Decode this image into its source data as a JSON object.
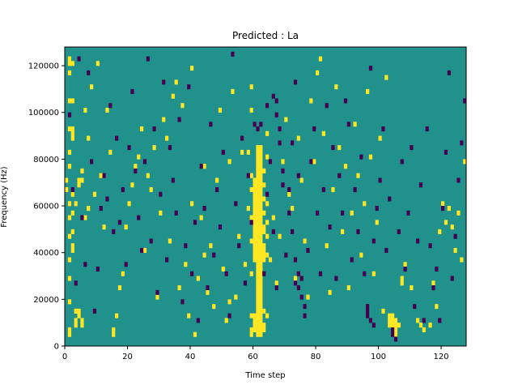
{
  "chart_data": {
    "type": "heatmap",
    "title": "Predicted : La",
    "xlabel": "Time step",
    "ylabel": "Frequency (Hz)",
    "xlim": [
      0,
      128
    ],
    "ylim": [
      0,
      128000
    ],
    "x_ticks": [
      0,
      20,
      40,
      60,
      80,
      100,
      120
    ],
    "y_ticks": [
      0,
      20000,
      40000,
      60000,
      80000,
      100000,
      120000
    ],
    "x_tick_labels": [
      "0",
      "20",
      "40",
      "60",
      "80",
      "100",
      "120"
    ],
    "y_tick_labels": [
      "0",
      "20000",
      "40000",
      "60000",
      "80000",
      "100000",
      "120000"
    ],
    "grid": false,
    "legend": "none",
    "rows": 64,
    "cols": 128,
    "bin_height_hz": 2000,
    "background_value": 0,
    "colors": {
      "low": "#440154",
      "mid": "#21918c",
      "high": "#fde725"
    },
    "cells_high": [
      [
        61,
        2
      ],
      [
        61,
        3
      ],
      [
        61,
        4
      ],
      [
        61,
        5
      ],
      [
        61,
        6
      ],
      [
        61,
        7
      ],
      [
        61,
        8
      ],
      [
        61,
        9
      ],
      [
        61,
        10
      ],
      [
        61,
        11
      ],
      [
        61,
        12
      ],
      [
        61,
        13
      ],
      [
        61,
        14
      ],
      [
        61,
        15
      ],
      [
        61,
        16
      ],
      [
        61,
        17
      ],
      [
        61,
        18
      ],
      [
        61,
        19
      ],
      [
        61,
        20
      ],
      [
        61,
        21
      ],
      [
        61,
        22
      ],
      [
        61,
        23
      ],
      [
        61,
        24
      ],
      [
        61,
        25
      ],
      [
        61,
        26
      ],
      [
        61,
        27
      ],
      [
        61,
        28
      ],
      [
        61,
        29
      ],
      [
        61,
        30
      ],
      [
        61,
        31
      ],
      [
        61,
        32
      ],
      [
        61,
        33
      ],
      [
        61,
        34
      ],
      [
        61,
        35
      ],
      [
        61,
        36
      ],
      [
        61,
        37
      ],
      [
        61,
        38
      ],
      [
        61,
        39
      ],
      [
        61,
        40
      ],
      [
        61,
        41
      ],
      [
        61,
        42
      ],
      [
        62,
        2
      ],
      [
        62,
        3
      ],
      [
        62,
        4
      ],
      [
        62,
        5
      ],
      [
        62,
        6
      ],
      [
        62,
        7
      ],
      [
        62,
        8
      ],
      [
        62,
        9
      ],
      [
        62,
        10
      ],
      [
        62,
        11
      ],
      [
        62,
        12
      ],
      [
        62,
        13
      ],
      [
        62,
        14
      ],
      [
        62,
        15
      ],
      [
        62,
        16
      ],
      [
        62,
        17
      ],
      [
        62,
        18
      ],
      [
        62,
        19
      ],
      [
        62,
        20
      ],
      [
        62,
        21
      ],
      [
        62,
        22
      ],
      [
        62,
        23
      ],
      [
        62,
        24
      ],
      [
        62,
        25
      ],
      [
        62,
        26
      ],
      [
        62,
        27
      ],
      [
        62,
        28
      ],
      [
        62,
        29
      ],
      [
        62,
        30
      ],
      [
        62,
        31
      ],
      [
        62,
        32
      ],
      [
        62,
        33
      ],
      [
        62,
        34
      ],
      [
        62,
        35
      ],
      [
        62,
        36
      ],
      [
        62,
        37
      ],
      [
        62,
        38
      ],
      [
        62,
        39
      ],
      [
        62,
        40
      ],
      [
        62,
        41
      ],
      [
        62,
        42
      ],
      [
        60,
        3
      ],
      [
        60,
        4
      ],
      [
        60,
        5
      ],
      [
        60,
        6
      ],
      [
        60,
        18
      ],
      [
        60,
        19
      ],
      [
        60,
        20
      ],
      [
        60,
        21
      ],
      [
        60,
        22
      ],
      [
        60,
        23
      ],
      [
        60,
        24
      ],
      [
        60,
        25
      ],
      [
        60,
        26
      ],
      [
        60,
        27
      ],
      [
        60,
        28
      ],
      [
        60,
        29
      ],
      [
        60,
        30
      ],
      [
        60,
        31
      ],
      [
        60,
        32
      ],
      [
        60,
        33
      ],
      [
        60,
        34
      ],
      [
        60,
        35
      ],
      [
        63,
        3
      ],
      [
        63,
        4
      ],
      [
        63,
        7
      ],
      [
        63,
        18
      ],
      [
        63,
        19
      ],
      [
        63,
        20
      ],
      [
        63,
        21
      ],
      [
        63,
        24
      ],
      [
        63,
        25
      ],
      [
        63,
        28
      ],
      [
        63,
        31
      ],
      [
        63,
        34
      ],
      [
        63,
        37
      ],
      [
        59,
        2
      ],
      [
        59,
        3
      ],
      [
        59,
        6
      ],
      [
        59,
        15
      ],
      [
        59,
        22
      ],
      [
        59,
        27
      ],
      [
        59,
        33
      ],
      [
        59,
        36
      ],
      [
        59,
        50
      ],
      [
        59,
        55
      ],
      [
        64,
        6
      ],
      [
        64,
        19
      ],
      [
        64,
        23
      ],
      [
        64,
        26
      ],
      [
        64,
        30
      ],
      [
        64,
        40
      ],
      [
        64,
        45
      ],
      [
        3,
        4
      ],
      [
        3,
        5
      ],
      [
        4,
        6
      ],
      [
        4,
        7
      ],
      [
        5,
        4
      ],
      [
        5,
        5
      ],
      [
        3,
        7
      ],
      [
        2,
        20
      ],
      [
        2,
        21
      ],
      [
        2,
        28
      ],
      [
        2,
        32
      ],
      [
        2,
        44
      ],
      [
        2,
        45
      ],
      [
        2,
        46
      ],
      [
        2,
        52
      ],
      [
        2,
        60
      ],
      [
        1,
        2
      ],
      [
        1,
        3
      ],
      [
        1,
        9
      ],
      [
        1,
        14
      ],
      [
        1,
        18
      ],
      [
        1,
        23
      ],
      [
        1,
        27
      ],
      [
        1,
        30
      ],
      [
        1,
        38
      ],
      [
        1,
        46
      ],
      [
        1,
        52
      ],
      [
        1,
        58
      ],
      [
        1,
        60
      ],
      [
        0,
        33
      ],
      [
        0,
        35
      ],
      [
        1,
        61
      ],
      [
        4,
        34
      ],
      [
        5,
        35
      ],
      [
        6,
        27
      ],
      [
        7,
        29
      ],
      [
        103,
        4
      ],
      [
        103,
        5
      ],
      [
        103,
        6
      ],
      [
        104,
        4
      ],
      [
        104,
        5
      ],
      [
        104,
        6
      ],
      [
        105,
        2
      ],
      [
        105,
        3
      ],
      [
        105,
        4
      ],
      [
        105,
        5
      ],
      [
        106,
        4
      ],
      [
        107,
        13
      ],
      [
        107,
        14
      ],
      [
        108,
        17
      ],
      [
        110,
        12
      ],
      [
        112,
        5
      ],
      [
        113,
        4
      ],
      [
        114,
        3
      ],
      [
        116,
        4
      ],
      [
        117,
        13
      ],
      [
        118,
        8
      ],
      [
        119,
        24
      ],
      [
        120,
        30
      ],
      [
        121,
        26
      ],
      [
        122,
        29
      ],
      [
        123,
        25
      ],
      [
        124,
        20
      ],
      [
        125,
        28
      ],
      [
        126,
        18
      ],
      [
        127,
        39
      ],
      [
        15,
        2
      ],
      [
        15,
        3
      ],
      [
        16,
        6
      ],
      [
        17,
        12
      ],
      [
        18,
        15
      ],
      [
        19,
        25
      ],
      [
        20,
        30
      ],
      [
        21,
        34
      ],
      [
        22,
        38
      ],
      [
        23,
        40
      ],
      [
        24,
        46
      ],
      [
        25,
        20
      ],
      [
        26,
        36
      ],
      [
        27,
        33
      ],
      [
        28,
        42
      ],
      [
        29,
        10
      ],
      [
        30,
        28
      ],
      [
        31,
        48
      ],
      [
        32,
        44
      ],
      [
        33,
        22
      ],
      [
        34,
        53
      ],
      [
        36,
        12
      ],
      [
        37,
        51
      ],
      [
        38,
        17
      ],
      [
        39,
        6
      ],
      [
        40,
        59
      ],
      [
        41,
        2
      ],
      [
        42,
        14
      ],
      [
        43,
        27
      ],
      [
        44,
        38
      ],
      [
        45,
        11
      ],
      [
        46,
        21
      ],
      [
        47,
        8
      ],
      [
        48,
        35
      ],
      [
        49,
        50
      ],
      [
        50,
        16
      ],
      [
        51,
        5
      ],
      [
        52,
        39
      ],
      [
        53,
        54
      ],
      [
        54,
        10
      ],
      [
        55,
        23
      ],
      [
        56,
        41
      ],
      [
        57,
        17
      ],
      [
        58,
        29
      ],
      [
        65,
        18
      ],
      [
        66,
        27
      ],
      [
        67,
        13
      ],
      [
        68,
        23
      ],
      [
        69,
        39
      ],
      [
        70,
        48
      ],
      [
        71,
        32
      ],
      [
        72,
        29
      ],
      [
        73,
        14
      ],
      [
        74,
        44
      ],
      [
        75,
        35
      ],
      [
        76,
        22
      ],
      [
        77,
        10
      ],
      [
        78,
        52
      ],
      [
        79,
        39
      ],
      [
        80,
        58
      ],
      [
        81,
        61
      ],
      [
        82,
        45
      ],
      [
        83,
        21
      ],
      [
        84,
        11
      ],
      [
        85,
        33
      ],
      [
        86,
        55
      ],
      [
        87,
        42
      ],
      [
        88,
        24
      ],
      [
        89,
        38
      ],
      [
        90,
        12
      ],
      [
        91,
        28
      ],
      [
        92,
        47
      ],
      [
        93,
        36
      ],
      [
        94,
        19
      ],
      [
        95,
        30
      ],
      [
        96,
        54
      ],
      [
        97,
        40
      ],
      [
        98,
        15
      ],
      [
        99,
        26
      ],
      [
        100,
        44
      ],
      [
        101,
        7
      ],
      [
        102,
        57
      ],
      [
        1,
        41
      ],
      [
        2,
        24
      ],
      [
        3,
        30
      ],
      [
        4,
        35
      ],
      [
        5,
        37
      ],
      [
        6,
        50
      ],
      [
        7,
        44
      ],
      [
        8,
        55
      ],
      [
        9,
        32
      ],
      [
        10,
        60
      ],
      [
        11,
        36
      ],
      [
        12,
        25
      ],
      [
        13,
        50
      ],
      [
        14,
        41
      ],
      [
        0,
        33
      ],
      [
        35,
        56
      ],
      [
        40,
        30
      ],
      [
        44,
        19
      ],
      [
        52,
        9
      ],
      [
        58,
        41
      ]
    ],
    "cells_low": [
      [
        61,
        46
      ],
      [
        62,
        47
      ],
      [
        64,
        51
      ],
      [
        66,
        53
      ],
      [
        67,
        52
      ],
      [
        67,
        49
      ],
      [
        68,
        46
      ],
      [
        68,
        43
      ],
      [
        69,
        37
      ],
      [
        69,
        34
      ],
      [
        71,
        28
      ],
      [
        72,
        24
      ],
      [
        73,
        18
      ],
      [
        73,
        13
      ],
      [
        74,
        12
      ],
      [
        74,
        15
      ],
      [
        75,
        14
      ],
      [
        75,
        10
      ],
      [
        76,
        8
      ],
      [
        76,
        6
      ],
      [
        96,
        6
      ],
      [
        96,
        7
      ],
      [
        96,
        8
      ],
      [
        97,
        5
      ],
      [
        98,
        4
      ],
      [
        104,
        2
      ],
      [
        104,
        3
      ],
      [
        105,
        1
      ],
      [
        114,
        5
      ],
      [
        117,
        12
      ],
      [
        11,
        29
      ],
      [
        12,
        36
      ],
      [
        13,
        31
      ],
      [
        14,
        51
      ],
      [
        15,
        24
      ],
      [
        16,
        44
      ],
      [
        17,
        26
      ],
      [
        18,
        33
      ],
      [
        19,
        17
      ],
      [
        20,
        42
      ],
      [
        21,
        54
      ],
      [
        22,
        37
      ],
      [
        23,
        27
      ],
      [
        24,
        20
      ],
      [
        25,
        39
      ],
      [
        26,
        61
      ],
      [
        27,
        22
      ],
      [
        28,
        46
      ],
      [
        29,
        11
      ],
      [
        30,
        32
      ],
      [
        31,
        56
      ],
      [
        32,
        18
      ],
      [
        33,
        42
      ],
      [
        34,
        35
      ],
      [
        35,
        28
      ],
      [
        36,
        48
      ],
      [
        37,
        9
      ],
      [
        38,
        21
      ],
      [
        39,
        55
      ],
      [
        40,
        15
      ],
      [
        41,
        26
      ],
      [
        42,
        5
      ],
      [
        43,
        38
      ],
      [
        44,
        29
      ],
      [
        45,
        12
      ],
      [
        46,
        47
      ],
      [
        47,
        19
      ],
      [
        48,
        33
      ],
      [
        49,
        25
      ],
      [
        50,
        41
      ],
      [
        51,
        15
      ],
      [
        52,
        6
      ],
      [
        53,
        62
      ],
      [
        54,
        30
      ],
      [
        55,
        21
      ],
      [
        56,
        44
      ],
      [
        57,
        13
      ],
      [
        58,
        36
      ],
      [
        59,
        26
      ],
      [
        60,
        47
      ],
      [
        63,
        15
      ],
      [
        64,
        32
      ],
      [
        65,
        39
      ],
      [
        66,
        24
      ],
      [
        67,
        12
      ],
      [
        70,
        19
      ],
      [
        71,
        33
      ],
      [
        72,
        43
      ],
      [
        73,
        56
      ],
      [
        74,
        36
      ],
      [
        77,
        20
      ],
      [
        78,
        39
      ],
      [
        79,
        46
      ],
      [
        80,
        28
      ],
      [
        81,
        15
      ],
      [
        82,
        33
      ],
      [
        83,
        51
      ],
      [
        84,
        25
      ],
      [
        85,
        42
      ],
      [
        86,
        14
      ],
      [
        87,
        36
      ],
      [
        88,
        28
      ],
      [
        89,
        52
      ],
      [
        90,
        47
      ],
      [
        91,
        18
      ],
      [
        92,
        33
      ],
      [
        93,
        24
      ],
      [
        94,
        40
      ],
      [
        95,
        15
      ],
      [
        97,
        59
      ],
      [
        98,
        22
      ],
      [
        99,
        29
      ],
      [
        100,
        35
      ],
      [
        101,
        46
      ],
      [
        102,
        20
      ],
      [
        103,
        31
      ],
      [
        106,
        24
      ],
      [
        107,
        39
      ],
      [
        108,
        16
      ],
      [
        109,
        28
      ],
      [
        110,
        42
      ],
      [
        111,
        8
      ],
      [
        112,
        22
      ],
      [
        113,
        34
      ],
      [
        115,
        46
      ],
      [
        116,
        21
      ],
      [
        118,
        16
      ],
      [
        119,
        5
      ],
      [
        120,
        29
      ],
      [
        121,
        41
      ],
      [
        122,
        58
      ],
      [
        123,
        14
      ],
      [
        124,
        23
      ],
      [
        125,
        35
      ],
      [
        126,
        43
      ],
      [
        127,
        52
      ],
      [
        9,
        7
      ],
      [
        10,
        16
      ],
      [
        8,
        39
      ],
      [
        7,
        58
      ],
      [
        6,
        17
      ],
      [
        5,
        27
      ],
      [
        4,
        61
      ],
      [
        3,
        13
      ],
      [
        2,
        33
      ],
      [
        1,
        49
      ]
    ]
  }
}
